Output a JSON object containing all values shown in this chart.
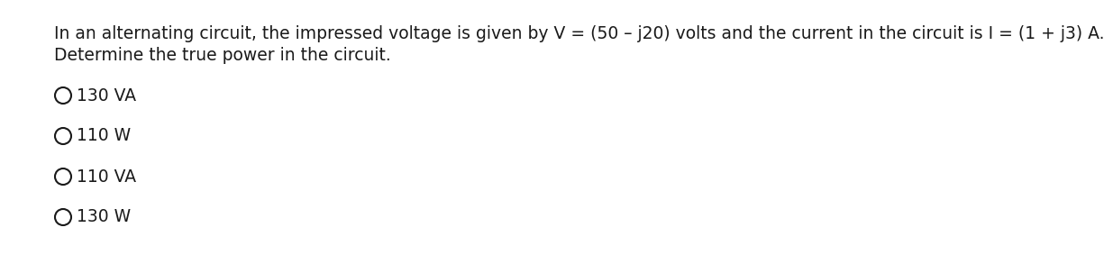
{
  "question_line1": "In an alternating circuit, the impressed voltage is given by V = (50 – j20) volts and the current in the circuit is I = (1 + j3) A.",
  "question_line2": "Determine the true power in the circuit.",
  "options": [
    "130 VA",
    "110 W",
    "110 VA",
    "130 W"
  ],
  "bg_color": "#ffffff",
  "text_color": "#1a1a1a",
  "font_size_question": 13.5,
  "font_size_options": 13.5,
  "fig_width": 12.0,
  "fig_height": 2.83
}
